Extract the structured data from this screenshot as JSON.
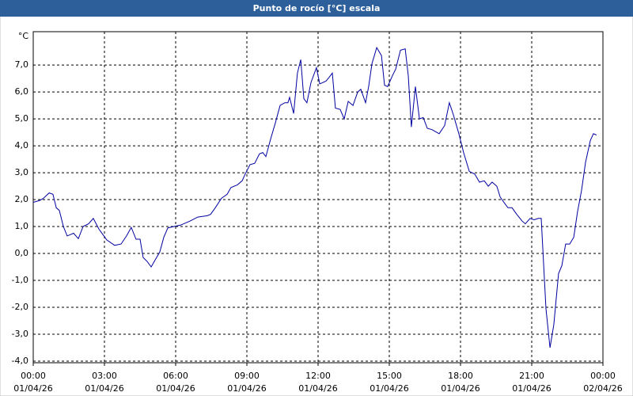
{
  "chart_data": {
    "type": "line",
    "title": "Punto de rocío [°C] escala",
    "y_unit": "°C",
    "xlim": [
      0,
      24
    ],
    "ylim": [
      -4.06,
      8.24
    ],
    "grid": true,
    "xticks": [
      {
        "value": 0,
        "label": "00:00",
        "sublabel": "01/04/26"
      },
      {
        "value": 3,
        "label": "03:00",
        "sublabel": "01/04/26"
      },
      {
        "value": 6,
        "label": "06:00",
        "sublabel": "01/04/26"
      },
      {
        "value": 9,
        "label": "09:00",
        "sublabel": "01/04/26"
      },
      {
        "value": 12,
        "label": "12:00",
        "sublabel": "01/04/26"
      },
      {
        "value": 15,
        "label": "15:00",
        "sublabel": "01/04/26"
      },
      {
        "value": 18,
        "label": "18:00",
        "sublabel": "01/04/26"
      },
      {
        "value": 21,
        "label": "21:00",
        "sublabel": "01/04/26"
      },
      {
        "value": 24,
        "label": "00:00",
        "sublabel": "02/04/26"
      }
    ],
    "yticks": [
      {
        "value": -4,
        "label": "-4,0"
      },
      {
        "value": -3,
        "label": "-3,0"
      },
      {
        "value": -2,
        "label": "-2,0"
      },
      {
        "value": -1,
        "label": "-1,0"
      },
      {
        "value": 0,
        "label": "0,0"
      },
      {
        "value": 1,
        "label": "1,0"
      },
      {
        "value": 2,
        "label": "2,0"
      },
      {
        "value": 3,
        "label": "3,0"
      },
      {
        "value": 4,
        "label": "4,0"
      },
      {
        "value": 5,
        "label": "5,0"
      },
      {
        "value": 6,
        "label": "6,0"
      },
      {
        "value": 7,
        "label": "7,0"
      }
    ],
    "series": [
      {
        "color": "#0000a0",
        "x": [
          0,
          0.27,
          0.43,
          0.67,
          0.83,
          0.97,
          1.1,
          1.27,
          1.43,
          1.7,
          1.9,
          2.1,
          2.33,
          2.53,
          2.77,
          3.1,
          3.43,
          3.7,
          3.93,
          4.13,
          4.33,
          4.5,
          4.63,
          4.8,
          4.97,
          5.13,
          5.33,
          5.5,
          5.67,
          5.93,
          6.2,
          6.6,
          6.93,
          7.33,
          7.47,
          7.67,
          7.93,
          8.17,
          8.33,
          8.6,
          8.8,
          8.93,
          9.13,
          9.33,
          9.53,
          9.67,
          9.8,
          10.0,
          10.2,
          10.4,
          10.6,
          10.73,
          10.8,
          10.97,
          11.13,
          11.27,
          11.4,
          11.53,
          11.7,
          11.93,
          12.07,
          12.33,
          12.47,
          12.6,
          12.73,
          12.93,
          13.1,
          13.27,
          13.47,
          13.67,
          13.8,
          14.0,
          14.13,
          14.27,
          14.47,
          14.67,
          14.8,
          14.93,
          15.13,
          15.27,
          15.47,
          15.67,
          15.8,
          15.93,
          16.1,
          16.27,
          16.43,
          16.6,
          16.8,
          17.1,
          17.33,
          17.53,
          17.7,
          17.93,
          18.13,
          18.37,
          18.6,
          18.8,
          19.0,
          19.17,
          19.33,
          19.53,
          19.67,
          19.87,
          20.0,
          20.17,
          20.37,
          20.6,
          20.73,
          20.93,
          21.1,
          21.27,
          21.4,
          21.6,
          21.77,
          21.93,
          22.13,
          22.27,
          22.43,
          22.6,
          22.77,
          22.93,
          23.1,
          23.27,
          23.47,
          23.6,
          23.73
        ],
        "values": [
          1.9,
          1.97,
          2.05,
          2.25,
          2.2,
          1.7,
          1.6,
          1.0,
          0.65,
          0.75,
          0.55,
          1.0,
          1.1,
          1.3,
          0.9,
          0.5,
          0.3,
          0.35,
          0.65,
          0.97,
          0.53,
          0.53,
          -0.15,
          -0.3,
          -0.5,
          -0.25,
          0.05,
          0.6,
          0.95,
          1.0,
          1.05,
          1.2,
          1.35,
          1.4,
          1.45,
          1.7,
          2.05,
          2.2,
          2.45,
          2.55,
          2.7,
          2.95,
          3.3,
          3.35,
          3.7,
          3.75,
          3.6,
          4.25,
          4.85,
          5.5,
          5.6,
          5.6,
          5.8,
          5.2,
          6.7,
          7.2,
          5.75,
          5.6,
          6.35,
          6.9,
          6.3,
          6.4,
          6.55,
          6.7,
          5.4,
          5.35,
          5.0,
          5.65,
          5.5,
          6.0,
          6.1,
          5.6,
          6.2,
          7.05,
          7.65,
          7.35,
          6.25,
          6.2,
          6.6,
          6.85,
          7.55,
          7.6,
          6.6,
          4.7,
          6.2,
          5.0,
          5.05,
          4.65,
          4.6,
          4.45,
          4.75,
          5.6,
          5.15,
          4.45,
          3.75,
          3.05,
          2.95,
          2.65,
          2.7,
          2.5,
          2.65,
          2.5,
          2.1,
          1.85,
          1.7,
          1.7,
          1.45,
          1.2,
          1.1,
          1.3,
          1.25,
          1.3,
          1.3,
          -2.05,
          -3.5,
          -2.65,
          -0.75,
          -0.45,
          0.35,
          0.35,
          0.6,
          1.55,
          2.35,
          3.4,
          4.2,
          4.45,
          4.4
        ]
      }
    ]
  }
}
